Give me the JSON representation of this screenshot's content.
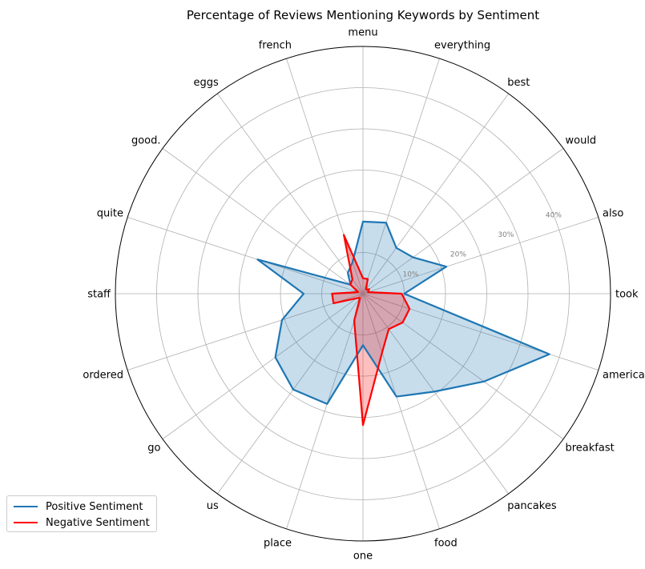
{
  "chart_data": {
    "type": "radar",
    "title": "Percentage of Reviews Mentioning Keywords by Sentiment",
    "categories": [
      "took",
      "also",
      "would",
      "best",
      "everything",
      "menu",
      "french",
      "eggs",
      "good.",
      "quite",
      "staff",
      "ordered",
      "go",
      "us",
      "place",
      "one",
      "food",
      "pancakes",
      "breakfast",
      "american"
    ],
    "radial_ticks": [
      "10%",
      "20%",
      "30%",
      "40%"
    ],
    "radial_tick_values": [
      10,
      20,
      30,
      40
    ],
    "rlim": [
      0,
      48
    ],
    "grid": true,
    "legend_position": "lower-left",
    "series": [
      {
        "name": "Positive Sentiment",
        "color": "#1f77b4",
        "fill": "#1f77b4",
        "values": [
          8,
          17,
          12,
          11,
          14.5,
          14,
          6.5,
          5,
          3,
          21.5,
          11.5,
          16.5,
          21,
          23,
          22.5,
          10,
          21,
          23.5,
          29,
          38
        ]
      },
      {
        "name": "Negative Sentiment",
        "color": "#ff0000",
        "fill": "#ff0000",
        "values": [
          7.5,
          1,
          1.5,
          1,
          3,
          3,
          12,
          3.5,
          3,
          1,
          6,
          6,
          1.5,
          1,
          5.5,
          25.5,
          12,
          8.5,
          9.5,
          9.5
        ]
      }
    ]
  }
}
